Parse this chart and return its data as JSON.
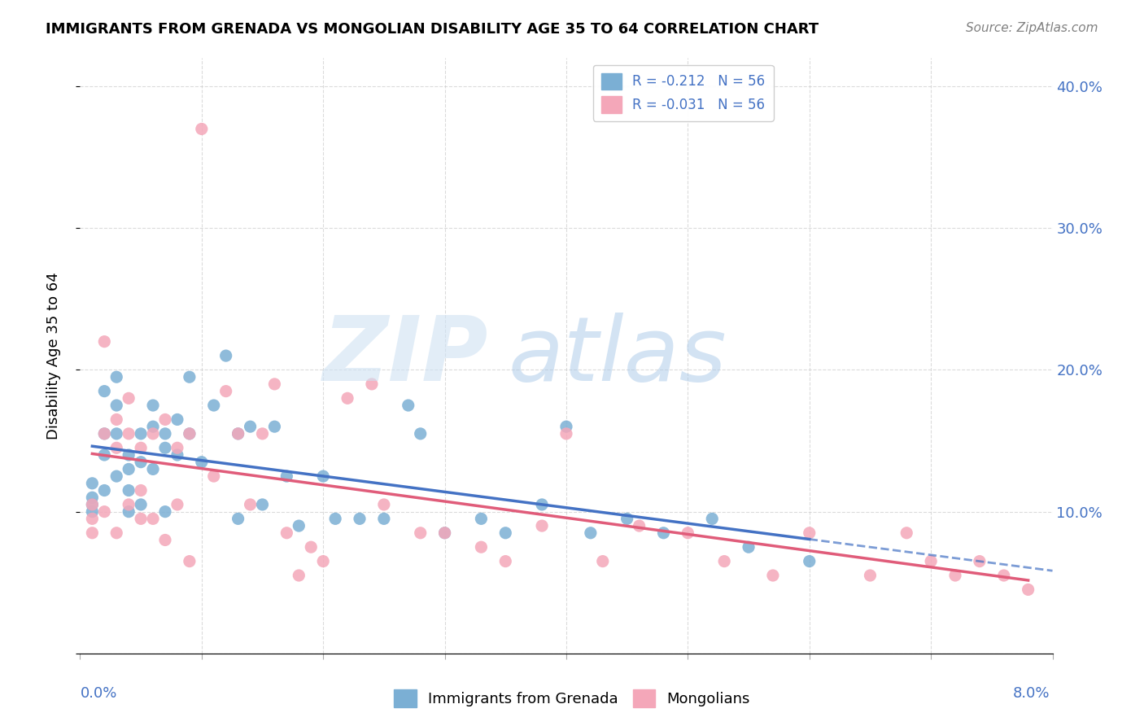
{
  "title": "IMMIGRANTS FROM GRENADA VS MONGOLIAN DISABILITY AGE 35 TO 64 CORRELATION CHART",
  "source": "Source: ZipAtlas.com",
  "ylabel": "Disability Age 35 to 64",
  "legend_entries": [
    {
      "label": "R = -0.212   N = 56",
      "color": "#7bafd4"
    },
    {
      "label": "R = -0.031   N = 56",
      "color": "#f4a7b9"
    }
  ],
  "legend_bottom": [
    "Immigrants from Grenada",
    "Mongolians"
  ],
  "grenada_color": "#7bafd4",
  "mongolian_color": "#f4a7b9",
  "trend_grenada_color": "#4472c4",
  "trend_mongolian_color": "#e05c7a",
  "background_color": "#ffffff",
  "xlim": [
    0.0,
    0.08
  ],
  "ylim": [
    0.0,
    0.42
  ],
  "grenada_x": [
    0.001,
    0.001,
    0.001,
    0.001,
    0.002,
    0.002,
    0.002,
    0.002,
    0.003,
    0.003,
    0.003,
    0.003,
    0.004,
    0.004,
    0.004,
    0.004,
    0.005,
    0.005,
    0.005,
    0.006,
    0.006,
    0.006,
    0.007,
    0.007,
    0.007,
    0.008,
    0.008,
    0.009,
    0.009,
    0.01,
    0.011,
    0.012,
    0.013,
    0.013,
    0.014,
    0.015,
    0.016,
    0.017,
    0.018,
    0.02,
    0.021,
    0.023,
    0.025,
    0.027,
    0.028,
    0.03,
    0.033,
    0.035,
    0.038,
    0.04,
    0.042,
    0.045,
    0.048,
    0.052,
    0.055,
    0.06
  ],
  "grenada_y": [
    0.12,
    0.11,
    0.105,
    0.1,
    0.185,
    0.155,
    0.14,
    0.115,
    0.195,
    0.175,
    0.155,
    0.125,
    0.14,
    0.13,
    0.115,
    0.1,
    0.155,
    0.135,
    0.105,
    0.175,
    0.16,
    0.13,
    0.155,
    0.145,
    0.1,
    0.165,
    0.14,
    0.195,
    0.155,
    0.135,
    0.175,
    0.21,
    0.155,
    0.095,
    0.16,
    0.105,
    0.16,
    0.125,
    0.09,
    0.125,
    0.095,
    0.095,
    0.095,
    0.175,
    0.155,
    0.085,
    0.095,
    0.085,
    0.105,
    0.16,
    0.085,
    0.095,
    0.085,
    0.095,
    0.075,
    0.065
  ],
  "mongolian_x": [
    0.001,
    0.001,
    0.001,
    0.002,
    0.002,
    0.002,
    0.003,
    0.003,
    0.003,
    0.004,
    0.004,
    0.004,
    0.005,
    0.005,
    0.005,
    0.006,
    0.006,
    0.007,
    0.007,
    0.008,
    0.008,
    0.009,
    0.009,
    0.01,
    0.011,
    0.012,
    0.013,
    0.014,
    0.015,
    0.016,
    0.017,
    0.018,
    0.019,
    0.02,
    0.022,
    0.024,
    0.025,
    0.028,
    0.03,
    0.033,
    0.035,
    0.038,
    0.04,
    0.043,
    0.046,
    0.05,
    0.053,
    0.057,
    0.06,
    0.065,
    0.068,
    0.07,
    0.072,
    0.074,
    0.076,
    0.078
  ],
  "mongolian_y": [
    0.105,
    0.095,
    0.085,
    0.22,
    0.155,
    0.1,
    0.165,
    0.145,
    0.085,
    0.18,
    0.155,
    0.105,
    0.145,
    0.115,
    0.095,
    0.155,
    0.095,
    0.165,
    0.08,
    0.145,
    0.105,
    0.155,
    0.065,
    0.37,
    0.125,
    0.185,
    0.155,
    0.105,
    0.155,
    0.19,
    0.085,
    0.055,
    0.075,
    0.065,
    0.18,
    0.19,
    0.105,
    0.085,
    0.085,
    0.075,
    0.065,
    0.09,
    0.155,
    0.065,
    0.09,
    0.085,
    0.065,
    0.055,
    0.085,
    0.055,
    0.085,
    0.065,
    0.055,
    0.065,
    0.055,
    0.045
  ]
}
